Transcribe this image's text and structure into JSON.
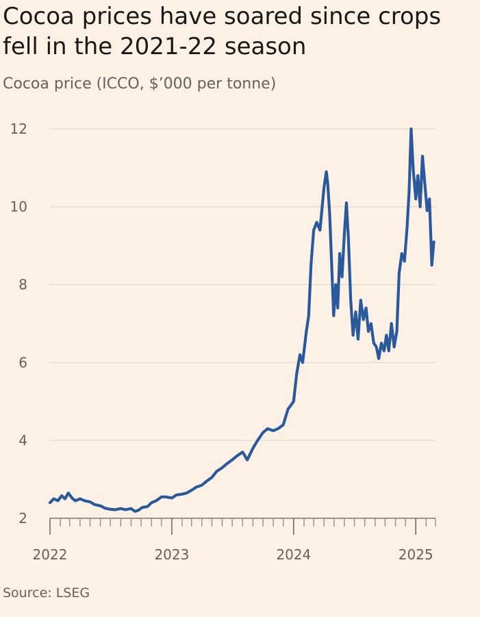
{
  "header": {
    "title": "Cocoa prices have soared since crops fell in the 2021-22 season",
    "subtitle": "Cocoa price (ICCO, $’000 per tonne)"
  },
  "footer": {
    "source": "Source: LSEG"
  },
  "colors": {
    "background": "#fdf1e6",
    "series": "#2b5a9c",
    "grid": "#e6dcd3"
  },
  "chart_data": {
    "type": "line",
    "title": "Cocoa prices have soared since crops fell in the 2021-22 season",
    "subtitle": "Cocoa price (ICCO, $’000 per tonne)",
    "xlabel": "",
    "ylabel": "",
    "xlim": [
      "2022-01-01",
      "2025-03-01"
    ],
    "ylim": [
      2,
      12
    ],
    "y_ticks": [
      2,
      4,
      6,
      8,
      10,
      12
    ],
    "x_ticks": [
      "2022",
      "2023",
      "2024",
      "2025"
    ],
    "grid": "horizontal",
    "legend": "none",
    "series": [
      {
        "points": [
          [
            "2022-01-01",
            2.4
          ],
          [
            "2022-01-12",
            2.5
          ],
          [
            "2022-01-25",
            2.45
          ],
          [
            "2022-02-05",
            2.58
          ],
          [
            "2022-02-15",
            2.5
          ],
          [
            "2022-02-25",
            2.65
          ],
          [
            "2022-03-08",
            2.52
          ],
          [
            "2022-03-18",
            2.45
          ],
          [
            "2022-04-01",
            2.5
          ],
          [
            "2022-04-15",
            2.45
          ],
          [
            "2022-05-01",
            2.42
          ],
          [
            "2022-05-15",
            2.35
          ],
          [
            "2022-06-01",
            2.32
          ],
          [
            "2022-06-15",
            2.26
          ],
          [
            "2022-07-01",
            2.23
          ],
          [
            "2022-07-15",
            2.22
          ],
          [
            "2022-08-01",
            2.25
          ],
          [
            "2022-08-15",
            2.22
          ],
          [
            "2022-09-01",
            2.25
          ],
          [
            "2022-09-12",
            2.18
          ],
          [
            "2022-09-22",
            2.2
          ],
          [
            "2022-10-05",
            2.28
          ],
          [
            "2022-10-20",
            2.3
          ],
          [
            "2022-11-01",
            2.4
          ],
          [
            "2022-11-15",
            2.45
          ],
          [
            "2022-12-01",
            2.55
          ],
          [
            "2022-12-15",
            2.55
          ],
          [
            "2023-01-01",
            2.52
          ],
          [
            "2023-01-15",
            2.6
          ],
          [
            "2023-02-01",
            2.62
          ],
          [
            "2023-02-15",
            2.65
          ],
          [
            "2023-03-01",
            2.72
          ],
          [
            "2023-03-15",
            2.8
          ],
          [
            "2023-04-01",
            2.85
          ],
          [
            "2023-04-15",
            2.95
          ],
          [
            "2023-05-01",
            3.05
          ],
          [
            "2023-05-15",
            3.2
          ],
          [
            "2023-06-01",
            3.3
          ],
          [
            "2023-06-15",
            3.4
          ],
          [
            "2023-07-01",
            3.5
          ],
          [
            "2023-07-15",
            3.6
          ],
          [
            "2023-08-01",
            3.7
          ],
          [
            "2023-08-15",
            3.5
          ],
          [
            "2023-09-01",
            3.8
          ],
          [
            "2023-09-15",
            4.0
          ],
          [
            "2023-10-01",
            4.2
          ],
          [
            "2023-10-15",
            4.3
          ],
          [
            "2023-11-01",
            4.25
          ],
          [
            "2023-11-15",
            4.3
          ],
          [
            "2023-12-01",
            4.4
          ],
          [
            "2023-12-15",
            4.8
          ],
          [
            "2024-01-01",
            5.0
          ],
          [
            "2024-01-10",
            5.7
          ],
          [
            "2024-01-20",
            6.2
          ],
          [
            "2024-01-28",
            6.0
          ],
          [
            "2024-02-08",
            6.8
          ],
          [
            "2024-02-15",
            7.2
          ],
          [
            "2024-02-22",
            8.5
          ],
          [
            "2024-03-01",
            9.4
          ],
          [
            "2024-03-10",
            9.6
          ],
          [
            "2024-03-20",
            9.4
          ],
          [
            "2024-04-01",
            10.5
          ],
          [
            "2024-04-08",
            10.9
          ],
          [
            "2024-04-12",
            10.6
          ],
          [
            "2024-04-18",
            9.8
          ],
          [
            "2024-04-24",
            8.5
          ],
          [
            "2024-04-30",
            7.2
          ],
          [
            "2024-05-06",
            8.0
          ],
          [
            "2024-05-12",
            7.4
          ],
          [
            "2024-05-18",
            8.8
          ],
          [
            "2024-05-25",
            8.2
          ],
          [
            "2024-06-01",
            9.3
          ],
          [
            "2024-06-07",
            10.1
          ],
          [
            "2024-06-13",
            9.2
          ],
          [
            "2024-06-20",
            7.6
          ],
          [
            "2024-06-27",
            6.7
          ],
          [
            "2024-07-05",
            7.3
          ],
          [
            "2024-07-12",
            6.6
          ],
          [
            "2024-07-20",
            7.6
          ],
          [
            "2024-07-28",
            7.1
          ],
          [
            "2024-08-05",
            7.4
          ],
          [
            "2024-08-12",
            6.8
          ],
          [
            "2024-08-20",
            7.0
          ],
          [
            "2024-08-28",
            6.5
          ],
          [
            "2024-09-05",
            6.4
          ],
          [
            "2024-09-12",
            6.1
          ],
          [
            "2024-09-20",
            6.5
          ],
          [
            "2024-09-28",
            6.3
          ],
          [
            "2024-10-05",
            6.7
          ],
          [
            "2024-10-12",
            6.3
          ],
          [
            "2024-10-20",
            7.0
          ],
          [
            "2024-10-28",
            6.4
          ],
          [
            "2024-11-05",
            6.8
          ],
          [
            "2024-11-12",
            8.3
          ],
          [
            "2024-11-20",
            8.8
          ],
          [
            "2024-11-28",
            8.6
          ],
          [
            "2024-12-06",
            9.5
          ],
          [
            "2024-12-12",
            10.4
          ],
          [
            "2024-12-18",
            12.0
          ],
          [
            "2024-12-24",
            11.0
          ],
          [
            "2025-01-01",
            10.2
          ],
          [
            "2025-01-07",
            10.8
          ],
          [
            "2025-01-14",
            10.0
          ],
          [
            "2025-01-21",
            11.3
          ],
          [
            "2025-01-28",
            10.6
          ],
          [
            "2025-02-04",
            9.9
          ],
          [
            "2025-02-11",
            10.2
          ],
          [
            "2025-02-18",
            8.5
          ],
          [
            "2025-02-24",
            9.1
          ]
        ]
      }
    ]
  }
}
